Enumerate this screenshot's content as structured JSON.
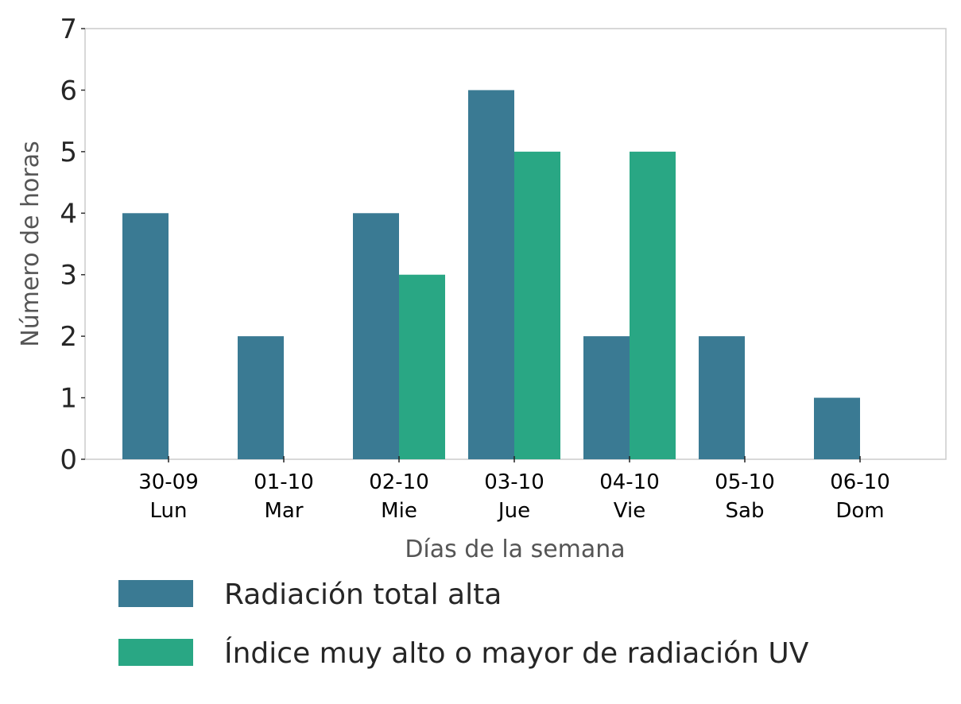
{
  "chart_data": {
    "type": "bar",
    "xlabel": "Días de la semana",
    "ylabel": "Número de horas",
    "ylim": [
      0,
      7
    ],
    "yticks": [
      0,
      1,
      2,
      3,
      4,
      5,
      6,
      7
    ],
    "grid": false,
    "legend_position": "bottom",
    "categories": [
      {
        "date": "30-09",
        "day": "Lun"
      },
      {
        "date": "01-10",
        "day": "Mar"
      },
      {
        "date": "02-10",
        "day": "Mie"
      },
      {
        "date": "03-10",
        "day": "Jue"
      },
      {
        "date": "04-10",
        "day": "Vie"
      },
      {
        "date": "05-10",
        "day": "Sab"
      },
      {
        "date": "06-10",
        "day": "Dom"
      }
    ],
    "series": [
      {
        "name": "Radiación total alta",
        "color": "#3a7a93",
        "values": [
          4,
          2,
          4,
          6,
          2,
          2,
          1
        ]
      },
      {
        "name": "Índice muy alto o mayor de radiación UV",
        "color": "#29a784",
        "values": [
          0,
          0,
          3,
          5,
          5,
          0,
          0
        ]
      }
    ]
  }
}
